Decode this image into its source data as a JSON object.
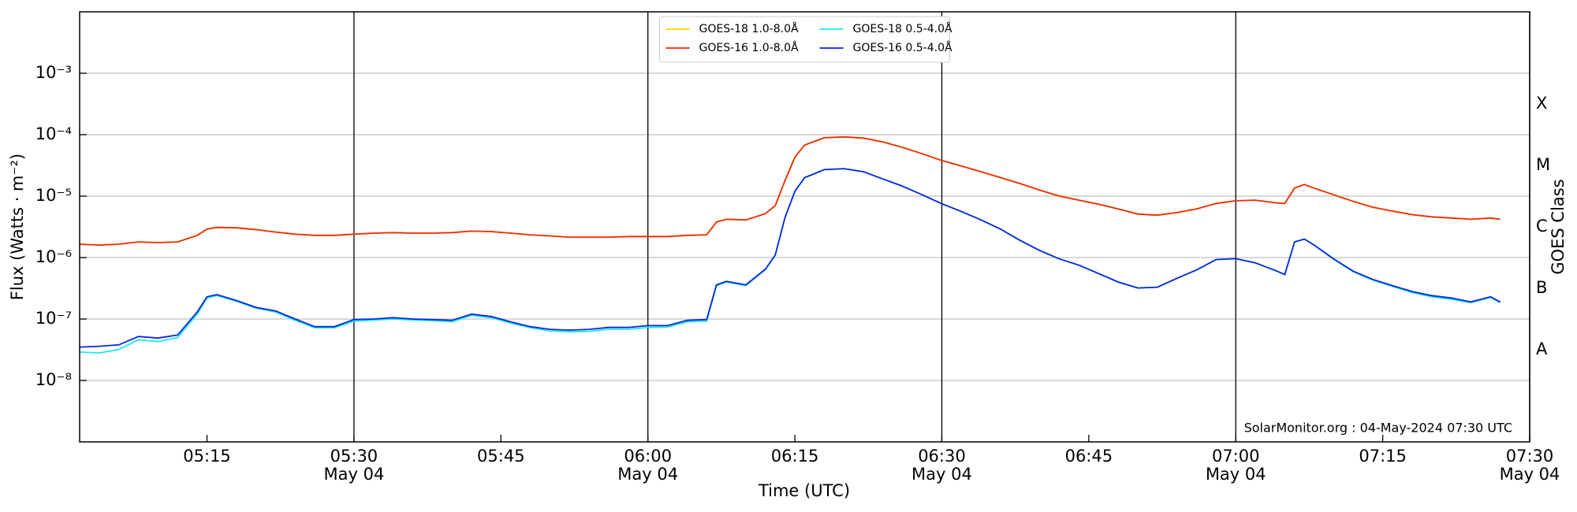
{
  "chart_data": {
    "type": "line",
    "xlabel": "Time (UTC)",
    "ylabel": "Flux (Watts · m⁻²)",
    "y2label": "GOES Class",
    "annotation": "SolarMonitor.org : 04-May-2024 07:30 UTC",
    "yscale": "log",
    "grid": true,
    "legend": "upper center",
    "xlim": [
      "05:02",
      "07:30"
    ],
    "xticks": [
      "05:15",
      {
        "value": "05:30",
        "label": "05:30\nMay 04"
      },
      "05:45",
      {
        "value": "06:00",
        "label": "06:00\nMay 04"
      },
      "06:15",
      {
        "value": "06:30",
        "label": "06:30\nMay 04"
      },
      "06:45",
      {
        "value": "07:00",
        "label": "07:00\nMay 04"
      },
      "07:15",
      {
        "value": "07:30",
        "label": "07:30\nMay 04"
      }
    ],
    "ylim": [
      1e-09,
      0.01
    ],
    "yticks": [
      {
        "value": 1e-08,
        "label": "10⁻⁸"
      },
      {
        "value": 1e-07,
        "label": "10⁻⁷"
      },
      {
        "value": 1e-06,
        "label": "10⁻⁶"
      },
      {
        "value": 1e-05,
        "label": "10⁻⁵"
      },
      {
        "value": 0.0001,
        "label": "10⁻⁴"
      },
      {
        "value": 0.001,
        "label": "10⁻³"
      }
    ],
    "y2lim": [
      1e-09,
      0.01
    ],
    "y2ticks": [
      {
        "value": 3.16e-08,
        "label": "A"
      },
      {
        "value": 3.16e-07,
        "label": "B"
      },
      {
        "value": 3.16e-06,
        "label": "C"
      },
      {
        "value": 3.16e-05,
        "label": "M"
      },
      {
        "value": 0.000316,
        "label": "X"
      }
    ],
    "x": [
      "05:02",
      "05:04",
      "05:06",
      "05:08",
      "05:10",
      "05:12",
      "05:14",
      "05:15",
      "05:16",
      "05:18",
      "05:20",
      "05:22",
      "05:24",
      "05:26",
      "05:28",
      "05:30",
      "05:32",
      "05:34",
      "05:36",
      "05:38",
      "05:40",
      "05:42",
      "05:44",
      "05:46",
      "05:48",
      "05:50",
      "05:52",
      "05:54",
      "05:56",
      "05:58",
      "06:00",
      "06:02",
      "06:04",
      "06:06",
      "06:07",
      "06:08",
      "06:10",
      "06:12",
      "06:13",
      "06:14",
      "06:15",
      "06:16",
      "06:18",
      "06:20",
      "06:22",
      "06:24",
      "06:26",
      "06:28",
      "06:30",
      "06:32",
      "06:34",
      "06:36",
      "06:38",
      "06:40",
      "06:42",
      "06:44",
      "06:46",
      "06:48",
      "06:50",
      "06:52",
      "06:54",
      "06:56",
      "06:58",
      "07:00",
      "07:02",
      "07:04",
      "07:05",
      "07:06",
      "07:07",
      "07:08",
      "07:10",
      "07:12",
      "07:14",
      "07:16",
      "07:18",
      "07:20",
      "07:22",
      "07:24",
      "07:26",
      "07:27"
    ],
    "series": [
      {
        "name": "GOES-18 1.0-8.0Å",
        "color": "#ffd500",
        "values": [
          1.65e-06,
          1.6e-06,
          1.65e-06,
          1.8e-06,
          1.75e-06,
          1.8e-06,
          2.3e-06,
          2.9e-06,
          3.1e-06,
          3.05e-06,
          2.85e-06,
          2.6e-06,
          2.4e-06,
          2.3e-06,
          2.3e-06,
          2.4e-06,
          2.5e-06,
          2.55e-06,
          2.5e-06,
          2.5e-06,
          2.55e-06,
          2.7e-06,
          2.65e-06,
          2.5e-06,
          2.35e-06,
          2.25e-06,
          2.15e-06,
          2.15e-06,
          2.15e-06,
          2.2e-06,
          2.2e-06,
          2.2e-06,
          2.3e-06,
          2.35e-06,
          3.8e-06,
          4.2e-06,
          4.1e-06,
          5.2e-06,
          7e-06,
          1.8e-05,
          4.3e-05,
          6.8e-05,
          8.9e-05,
          9.2e-05,
          8.8e-05,
          7.6e-05,
          6.2e-05,
          4.9e-05,
          3.8e-05,
          3.1e-05,
          2.5e-05,
          2e-05,
          1.6e-05,
          1.25e-05,
          1e-05,
          8.6e-06,
          7.4e-06,
          6.2e-06,
          5.1e-06,
          4.9e-06,
          5.4e-06,
          6.2e-06,
          7.6e-06,
          8.4e-06,
          8.6e-06,
          7.8e-06,
          7.6e-06,
          1.35e-05,
          1.55e-05,
          1.35e-05,
          1.05e-05,
          8.2e-06,
          6.6e-06,
          5.7e-06,
          5e-06,
          4.6e-06,
          4.4e-06,
          4.2e-06,
          4.4e-06,
          4.2e-06
        ]
      },
      {
        "name": "GOES-16 1.0-8.0Å",
        "color": "#f02a0a",
        "values": [
          1.65e-06,
          1.6e-06,
          1.65e-06,
          1.8e-06,
          1.75e-06,
          1.8e-06,
          2.3e-06,
          2.9e-06,
          3.1e-06,
          3.05e-06,
          2.85e-06,
          2.6e-06,
          2.4e-06,
          2.3e-06,
          2.3e-06,
          2.4e-06,
          2.5e-06,
          2.55e-06,
          2.5e-06,
          2.5e-06,
          2.55e-06,
          2.7e-06,
          2.65e-06,
          2.5e-06,
          2.35e-06,
          2.25e-06,
          2.15e-06,
          2.15e-06,
          2.15e-06,
          2.2e-06,
          2.2e-06,
          2.2e-06,
          2.3e-06,
          2.35e-06,
          3.8e-06,
          4.2e-06,
          4.1e-06,
          5.2e-06,
          7e-06,
          1.8e-05,
          4.3e-05,
          6.8e-05,
          8.9e-05,
          9.2e-05,
          8.8e-05,
          7.6e-05,
          6.2e-05,
          4.9e-05,
          3.8e-05,
          3.1e-05,
          2.5e-05,
          2e-05,
          1.6e-05,
          1.25e-05,
          1e-05,
          8.6e-06,
          7.4e-06,
          6.2e-06,
          5.1e-06,
          4.9e-06,
          5.4e-06,
          6.2e-06,
          7.6e-06,
          8.4e-06,
          8.6e-06,
          7.8e-06,
          7.6e-06,
          1.35e-05,
          1.55e-05,
          1.35e-05,
          1.05e-05,
          8.2e-06,
          6.6e-06,
          5.7e-06,
          5e-06,
          4.6e-06,
          4.4e-06,
          4.2e-06,
          4.4e-06,
          4.2e-06
        ]
      },
      {
        "name": "GOES-18 0.5-4.0Å",
        "color": "#1ee8f0",
        "values": [
          2.9e-08,
          2.8e-08,
          3.2e-08,
          4.6e-08,
          4.3e-08,
          5e-08,
          1.2e-07,
          2.2e-07,
          2.4e-07,
          1.95e-07,
          1.5e-07,
          1.3e-07,
          9.5e-08,
          7.2e-08,
          7.2e-08,
          9.2e-08,
          9.6e-08,
          1e-07,
          9.6e-08,
          9.4e-08,
          9e-08,
          1.15e-07,
          1.05e-07,
          8.6e-08,
          7.2e-08,
          6.4e-08,
          6.2e-08,
          6.3e-08,
          6.8e-08,
          6.8e-08,
          7.3e-08,
          7.4e-08,
          9e-08,
          9.2e-08,
          3.5e-07,
          4e-07,
          3.5e-07,
          6.4e-07,
          1.1e-06,
          4.5e-06,
          1.2e-05,
          2e-05,
          2.7e-05,
          2.8e-05,
          2.5e-05,
          1.9e-05,
          1.45e-05,
          1.05e-05,
          7.5e-06,
          5.6e-06,
          4.1e-06,
          2.9e-06,
          1.9e-06,
          1.3e-06,
          9.5e-07,
          7.5e-07,
          5.5e-07,
          4e-07,
          3.2e-07,
          3.3e-07,
          4.6e-07,
          6.3e-07,
          9.3e-07,
          9.6e-07,
          8.2e-07,
          6.2e-07,
          5.3e-07,
          1.8e-06,
          2e-06,
          1.6e-06,
          9.4e-07,
          5.9e-07,
          4.3e-07,
          3.4e-07,
          2.7e-07,
          2.3e-07,
          2.1e-07,
          1.85e-07,
          2.25e-07,
          1.85e-07
        ]
      },
      {
        "name": "GOES-16 0.5-4.0Å",
        "color": "#0a28d8",
        "values": [
          3.5e-08,
          3.6e-08,
          3.8e-08,
          5.2e-08,
          4.9e-08,
          5.5e-08,
          1.3e-07,
          2.3e-07,
          2.5e-07,
          2e-07,
          1.55e-07,
          1.35e-07,
          1e-07,
          7.5e-08,
          7.5e-08,
          9.8e-08,
          1e-07,
          1.05e-07,
          1e-07,
          9.8e-08,
          9.5e-08,
          1.2e-07,
          1.1e-07,
          9e-08,
          7.5e-08,
          6.8e-08,
          6.6e-08,
          6.8e-08,
          7.3e-08,
          7.3e-08,
          7.8e-08,
          7.8e-08,
          9.5e-08,
          9.8e-08,
          3.6e-07,
          4.1e-07,
          3.6e-07,
          6.5e-07,
          1.1e-06,
          4.5e-06,
          1.2e-05,
          2e-05,
          2.7e-05,
          2.8e-05,
          2.5e-05,
          1.9e-05,
          1.45e-05,
          1.05e-05,
          7.5e-06,
          5.6e-06,
          4.1e-06,
          2.9e-06,
          1.9e-06,
          1.3e-06,
          9.5e-07,
          7.5e-07,
          5.5e-07,
          4e-07,
          3.2e-07,
          3.3e-07,
          4.6e-07,
          6.3e-07,
          9.3e-07,
          9.6e-07,
          8.2e-07,
          6.2e-07,
          5.3e-07,
          1.8e-06,
          2e-06,
          1.6e-06,
          9.5e-07,
          6e-07,
          4.4e-07,
          3.5e-07,
          2.8e-07,
          2.4e-07,
          2.2e-07,
          1.9e-07,
          2.3e-07,
          1.9e-07
        ]
      }
    ]
  }
}
